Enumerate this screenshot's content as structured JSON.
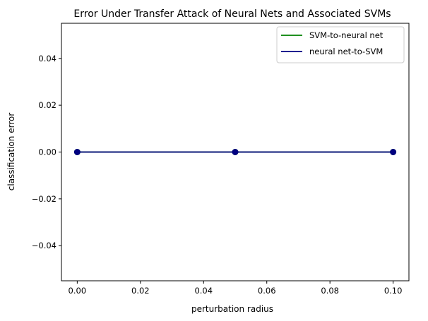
{
  "chart_data": {
    "type": "line",
    "title": "Error Under Transfer Attack of Neural Nets and Associated SVMs",
    "xlabel": "perturbation radius",
    "ylabel": "classification error",
    "x": [
      0.0,
      0.05,
      0.1
    ],
    "xlim": [
      -0.005,
      0.105
    ],
    "ylim": [
      -0.055,
      0.055
    ],
    "xticks": [
      0.0,
      0.02,
      0.04,
      0.06,
      0.08,
      0.1
    ],
    "xtick_labels": [
      "0.00",
      "0.02",
      "0.04",
      "0.06",
      "0.08",
      "0.10"
    ],
    "yticks": [
      -0.04,
      -0.02,
      0.0,
      0.02,
      0.04
    ],
    "ytick_labels": [
      "−0.04",
      "−0.02",
      "0.00",
      "0.02",
      "0.04"
    ],
    "grid": false,
    "legend_position": "top-right",
    "series": [
      {
        "name": "SVM-to-neural net",
        "values": [
          0.0,
          0.0,
          0.0
        ],
        "color": "#008000",
        "marker": "circle",
        "marker_color": "#008000"
      },
      {
        "name": "neural net-to-SVM",
        "values": [
          0.0,
          0.0,
          0.0
        ],
        "color": "#000080",
        "marker": "circle",
        "marker_color": "#000080"
      }
    ]
  }
}
